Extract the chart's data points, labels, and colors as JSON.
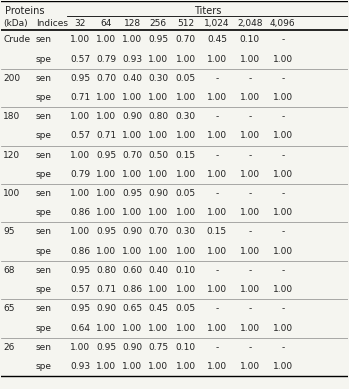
{
  "title_proteins": "Proteins",
  "title_titers": "Titers",
  "col_header1": "(kDa)",
  "col_header2": "Indices",
  "titer_cols": [
    "32",
    "64",
    "128",
    "256",
    "512",
    "1,024",
    "2,048",
    "4,096"
  ],
  "rows": [
    {
      "kda": "Crude",
      "indices": "sen",
      "values": [
        "1.00",
        "1.00",
        "1.00",
        "0.95",
        "0.70",
        "0.45",
        "0.10",
        "-"
      ]
    },
    {
      "kda": "",
      "indices": "spe",
      "values": [
        "0.57",
        "0.79",
        "0.93",
        "1.00",
        "1.00",
        "1.00",
        "1.00",
        "1.00"
      ]
    },
    {
      "kda": "200",
      "indices": "sen",
      "values": [
        "0.95",
        "0.70",
        "0.40",
        "0.30",
        "0.05",
        "-",
        "-",
        "-"
      ]
    },
    {
      "kda": "",
      "indices": "spe",
      "values": [
        "0.71",
        "1.00",
        "1.00",
        "1.00",
        "1.00",
        "1.00",
        "1.00",
        "1.00"
      ]
    },
    {
      "kda": "180",
      "indices": "sen",
      "values": [
        "1.00",
        "1.00",
        "0.90",
        "0.80",
        "0.30",
        "-",
        "-",
        "-"
      ]
    },
    {
      "kda": "",
      "indices": "spe",
      "values": [
        "0.57",
        "0.71",
        "1.00",
        "1.00",
        "1.00",
        "1.00",
        "1.00",
        "1.00"
      ]
    },
    {
      "kda": "120",
      "indices": "sen",
      "values": [
        "1.00",
        "0.95",
        "0.70",
        "0.50",
        "0.15",
        "-",
        "-",
        "-"
      ]
    },
    {
      "kda": "",
      "indices": "spe",
      "values": [
        "0.79",
        "1.00",
        "1.00",
        "1.00",
        "1.00",
        "1.00",
        "1.00",
        "1.00"
      ]
    },
    {
      "kda": "100",
      "indices": "sen",
      "values": [
        "1.00",
        "1.00",
        "0.95",
        "0.90",
        "0.05",
        "-",
        "-",
        "-"
      ]
    },
    {
      "kda": "",
      "indices": "spe",
      "values": [
        "0.86",
        "1.00",
        "1.00",
        "1.00",
        "1.00",
        "1.00",
        "1.00",
        "1.00"
      ]
    },
    {
      "kda": "95",
      "indices": "sen",
      "values": [
        "1.00",
        "0.95",
        "0.90",
        "0.70",
        "0.30",
        "0.15",
        "-",
        "-"
      ]
    },
    {
      "kda": "",
      "indices": "spe",
      "values": [
        "0.86",
        "1.00",
        "1.00",
        "1.00",
        "1.00",
        "1.00",
        "1.00",
        "1.00"
      ]
    },
    {
      "kda": "68",
      "indices": "sen",
      "values": [
        "0.95",
        "0.80",
        "0.60",
        "0.40",
        "0.10",
        "-",
        "-",
        "-"
      ]
    },
    {
      "kda": "",
      "indices": "spe",
      "values": [
        "0.57",
        "0.71",
        "0.86",
        "1.00",
        "1.00",
        "1.00",
        "1.00",
        "1.00"
      ]
    },
    {
      "kda": "65",
      "indices": "sen",
      "values": [
        "0.95",
        "0.90",
        "0.65",
        "0.45",
        "0.05",
        "-",
        "-",
        "-"
      ]
    },
    {
      "kda": "",
      "indices": "spe",
      "values": [
        "0.64",
        "1.00",
        "1.00",
        "1.00",
        "1.00",
        "1.00",
        "1.00",
        "1.00"
      ]
    },
    {
      "kda": "26",
      "indices": "sen",
      "values": [
        "1.00",
        "0.95",
        "0.90",
        "0.75",
        "0.10",
        "-",
        "-",
        "-"
      ]
    },
    {
      "kda": "",
      "indices": "spe",
      "values": [
        "0.93",
        "1.00",
        "1.00",
        "1.00",
        "1.00",
        "1.00",
        "1.00",
        "1.00"
      ]
    }
  ],
  "group_separators_after": [
    1,
    3,
    5,
    7,
    9,
    11,
    13,
    15
  ],
  "bg_color": "#f5f5f0",
  "text_color": "#222222",
  "font_size": 6.5,
  "header_font_size": 7.0
}
